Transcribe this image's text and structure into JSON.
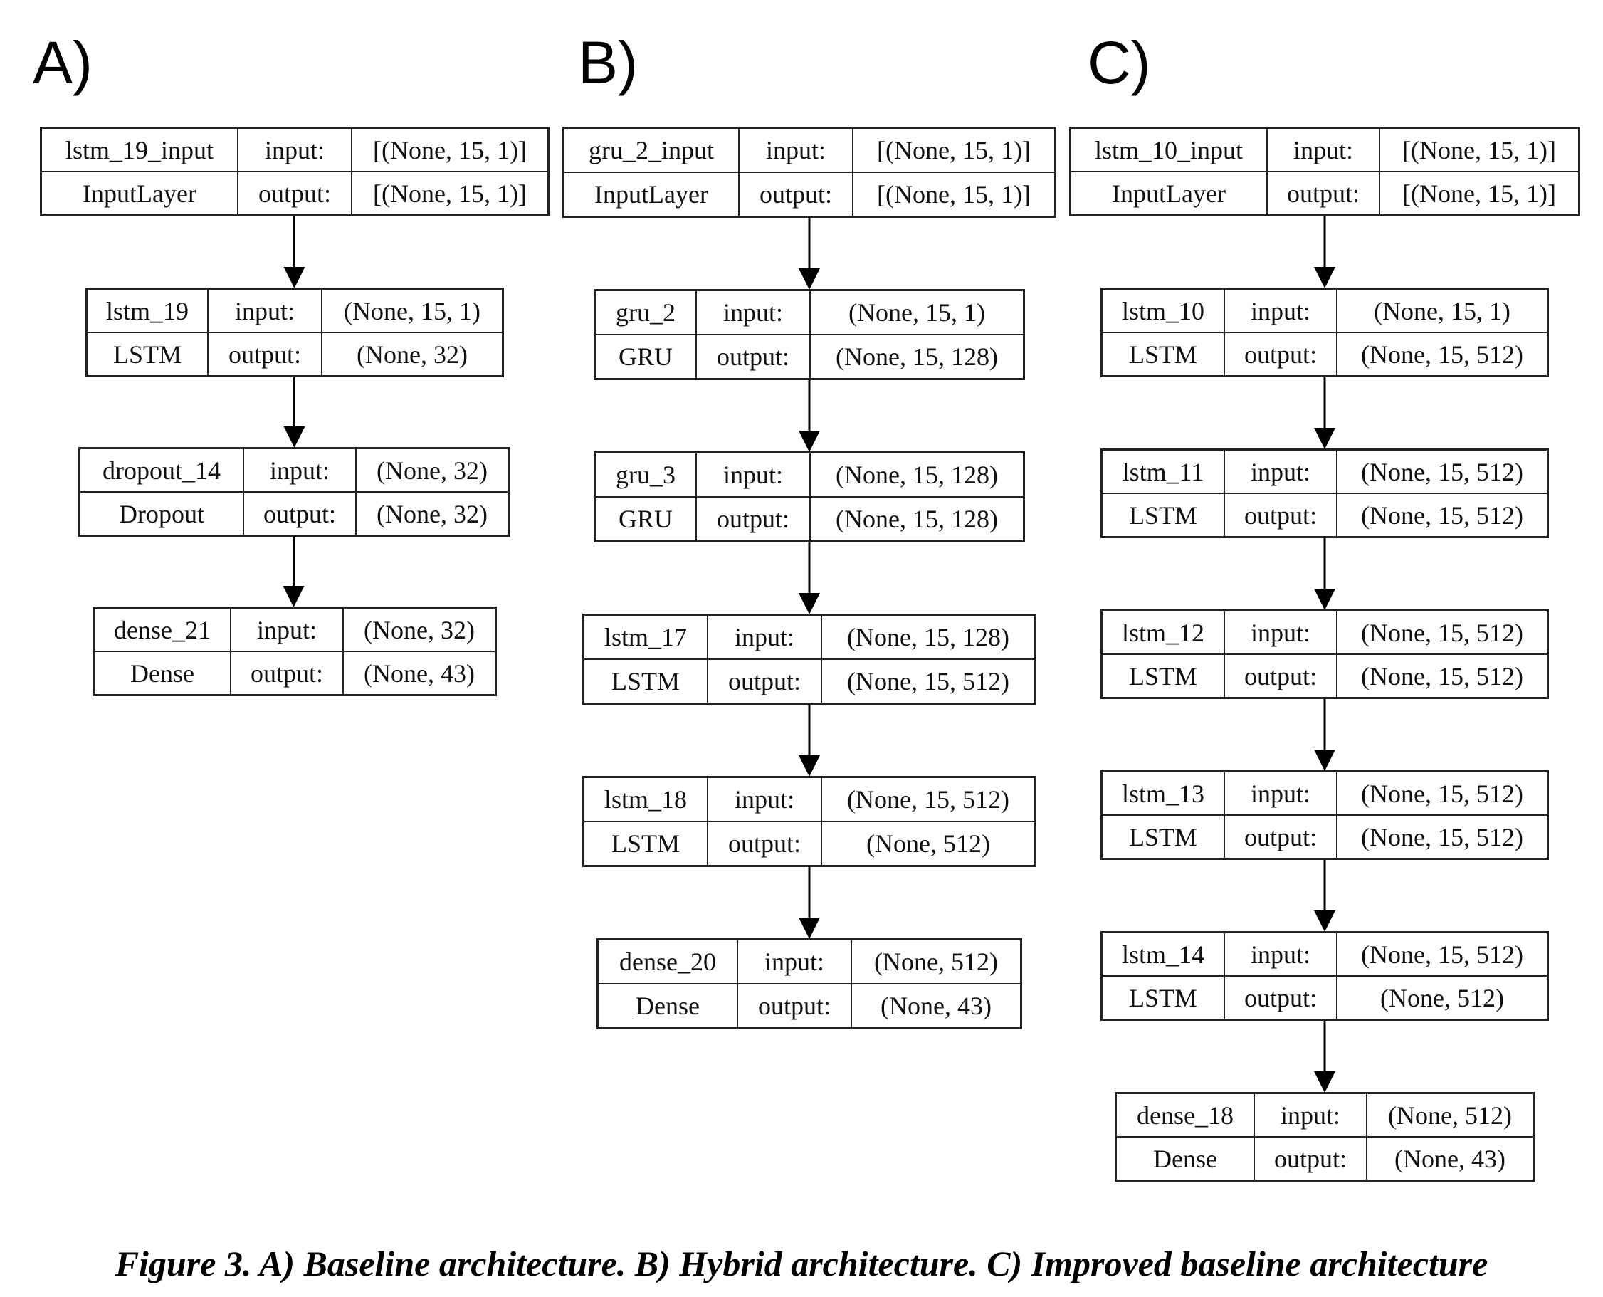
{
  "panels": [
    {
      "label": "A)",
      "layers": [
        {
          "name": "lstm_19_input",
          "type": "InputLayer",
          "input_label": "input:",
          "output_label": "output:",
          "input_shape": "[(None, 15, 1)]",
          "output_shape": "[(None, 15, 1)]"
        },
        {
          "name": "lstm_19",
          "type": "LSTM",
          "input_label": "input:",
          "output_label": "output:",
          "input_shape": "(None, 15, 1)",
          "output_shape": "(None, 32)"
        },
        {
          "name": "dropout_14",
          "type": "Dropout",
          "input_label": "input:",
          "output_label": "output:",
          "input_shape": "(None, 32)",
          "output_shape": "(None, 32)"
        },
        {
          "name": "dense_21",
          "type": "Dense",
          "input_label": "input:",
          "output_label": "output:",
          "input_shape": "(None, 32)",
          "output_shape": "(None, 43)"
        }
      ]
    },
    {
      "label": "B)",
      "layers": [
        {
          "name": "gru_2_input",
          "type": "InputLayer",
          "input_label": "input:",
          "output_label": "output:",
          "input_shape": "[(None, 15, 1)]",
          "output_shape": "[(None, 15, 1)]"
        },
        {
          "name": "gru_2",
          "type": "GRU",
          "input_label": "input:",
          "output_label": "output:",
          "input_shape": "(None, 15, 1)",
          "output_shape": "(None, 15, 128)"
        },
        {
          "name": "gru_3",
          "type": "GRU",
          "input_label": "input:",
          "output_label": "output:",
          "input_shape": "(None, 15, 128)",
          "output_shape": "(None, 15, 128)"
        },
        {
          "name": "lstm_17",
          "type": "LSTM",
          "input_label": "input:",
          "output_label": "output:",
          "input_shape": "(None, 15, 128)",
          "output_shape": "(None, 15, 512)"
        },
        {
          "name": "lstm_18",
          "type": "LSTM",
          "input_label": "input:",
          "output_label": "output:",
          "input_shape": "(None, 15, 512)",
          "output_shape": "(None, 512)"
        },
        {
          "name": "dense_20",
          "type": "Dense",
          "input_label": "input:",
          "output_label": "output:",
          "input_shape": "(None, 512)",
          "output_shape": "(None, 43)"
        }
      ]
    },
    {
      "label": "C)",
      "layers": [
        {
          "name": "lstm_10_input",
          "type": "InputLayer",
          "input_label": "input:",
          "output_label": "output:",
          "input_shape": "[(None, 15, 1)]",
          "output_shape": "[(None, 15, 1)]"
        },
        {
          "name": "lstm_10",
          "type": "LSTM",
          "input_label": "input:",
          "output_label": "output:",
          "input_shape": "(None, 15, 1)",
          "output_shape": "(None, 15, 512)"
        },
        {
          "name": "lstm_11",
          "type": "LSTM",
          "input_label": "input:",
          "output_label": "output:",
          "input_shape": "(None, 15, 512)",
          "output_shape": "(None, 15, 512)"
        },
        {
          "name": "lstm_12",
          "type": "LSTM",
          "input_label": "input:",
          "output_label": "output:",
          "input_shape": "(None, 15, 512)",
          "output_shape": "(None, 15, 512)"
        },
        {
          "name": "lstm_13",
          "type": "LSTM",
          "input_label": "input:",
          "output_label": "output:",
          "input_shape": "(None, 15, 512)",
          "output_shape": "(None, 15, 512)"
        },
        {
          "name": "lstm_14",
          "type": "LSTM",
          "input_label": "input:",
          "output_label": "output:",
          "input_shape": "(None, 15, 512)",
          "output_shape": "(None, 512)"
        },
        {
          "name": "dense_18",
          "type": "Dense",
          "input_label": "input:",
          "output_label": "output:",
          "input_shape": "(None, 512)",
          "output_shape": "(None, 43)"
        }
      ]
    }
  ],
  "caption": "Figure 3. A) Baseline architecture. B) Hybrid architecture. C) Improved baseline architecture"
}
